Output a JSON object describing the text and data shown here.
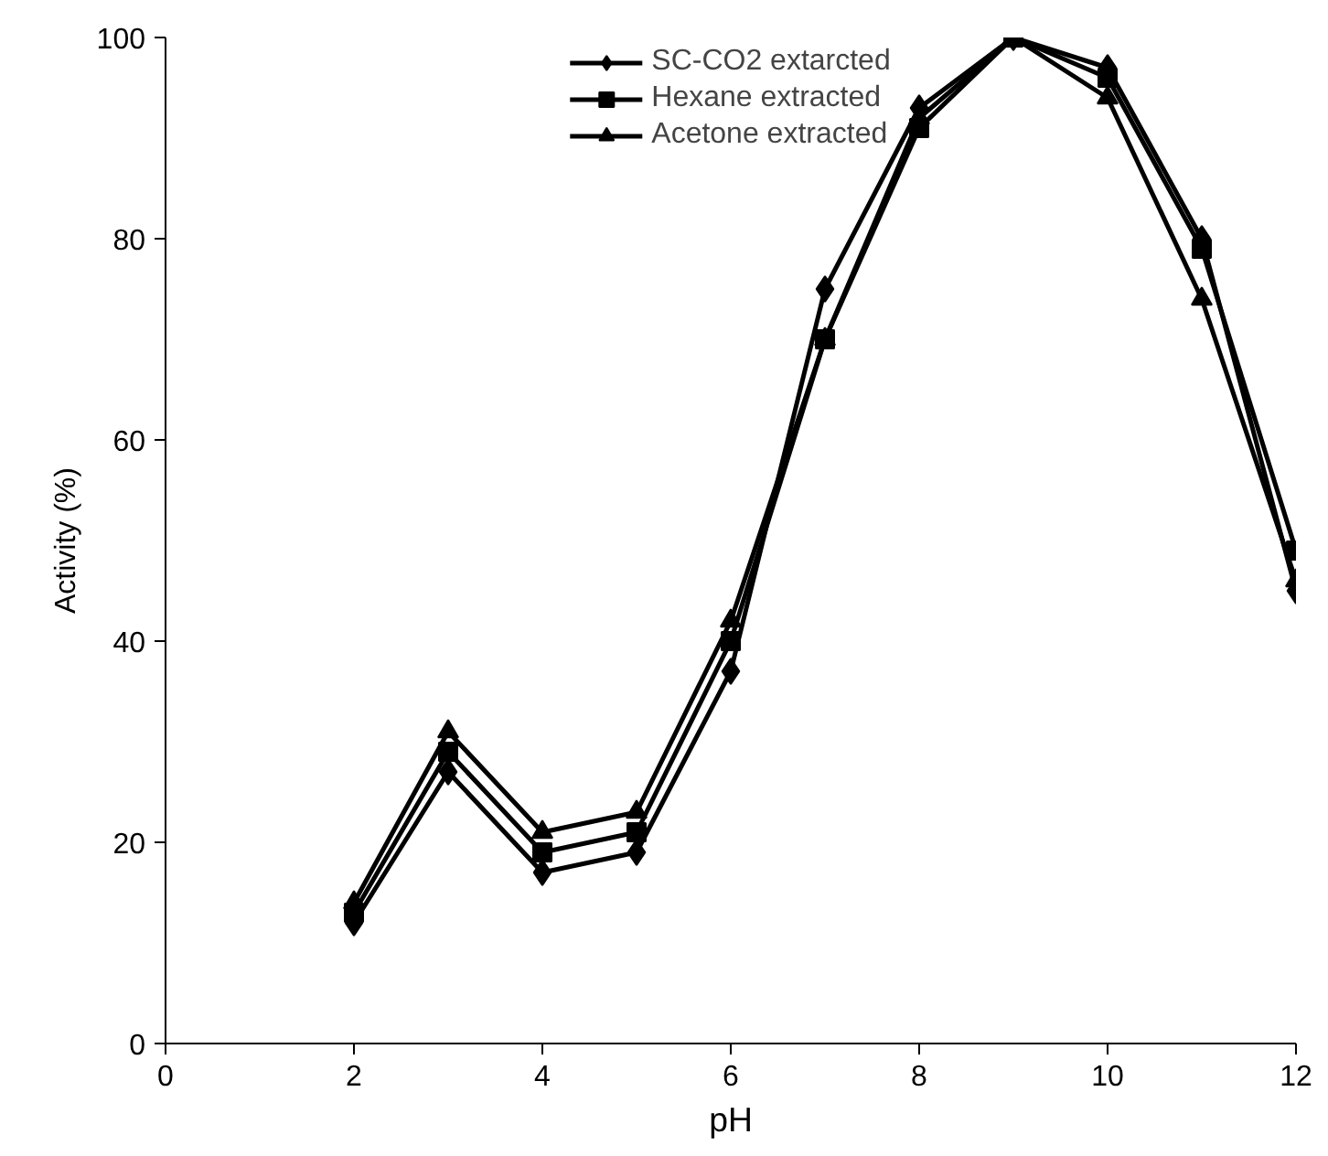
{
  "chart_data": {
    "type": "line",
    "xlabel": "pH",
    "ylabel": "Activity (%)",
    "x": [
      2,
      3,
      4,
      5,
      6,
      7,
      8,
      9,
      10,
      11,
      12
    ],
    "series": [
      {
        "name": "SC-CO2 extarcted",
        "color": "#000000",
        "marker": "diamond",
        "values": [
          12,
          27,
          17,
          19,
          37,
          75,
          93,
          100,
          97,
          80,
          45
        ]
      },
      {
        "name": "Hexane extracted",
        "color": "#000000",
        "marker": "square",
        "values": [
          13,
          29,
          19,
          21,
          40,
          70,
          91,
          100,
          96,
          79,
          49
        ]
      },
      {
        "name": "Acetone extracted",
        "color": "#000000",
        "marker": "triangle",
        "values": [
          14,
          31,
          21,
          23,
          42,
          70,
          92,
          100,
          94,
          74,
          46
        ]
      }
    ],
    "xlim": [
      0,
      12
    ],
    "xticks": [
      0,
      2,
      4,
      6,
      8,
      10,
      12
    ],
    "ylim": [
      0,
      100
    ],
    "yticks": [
      0,
      20,
      40,
      60,
      80,
      100
    ],
    "grid": false,
    "legend": "top",
    "line_style": "solid"
  }
}
